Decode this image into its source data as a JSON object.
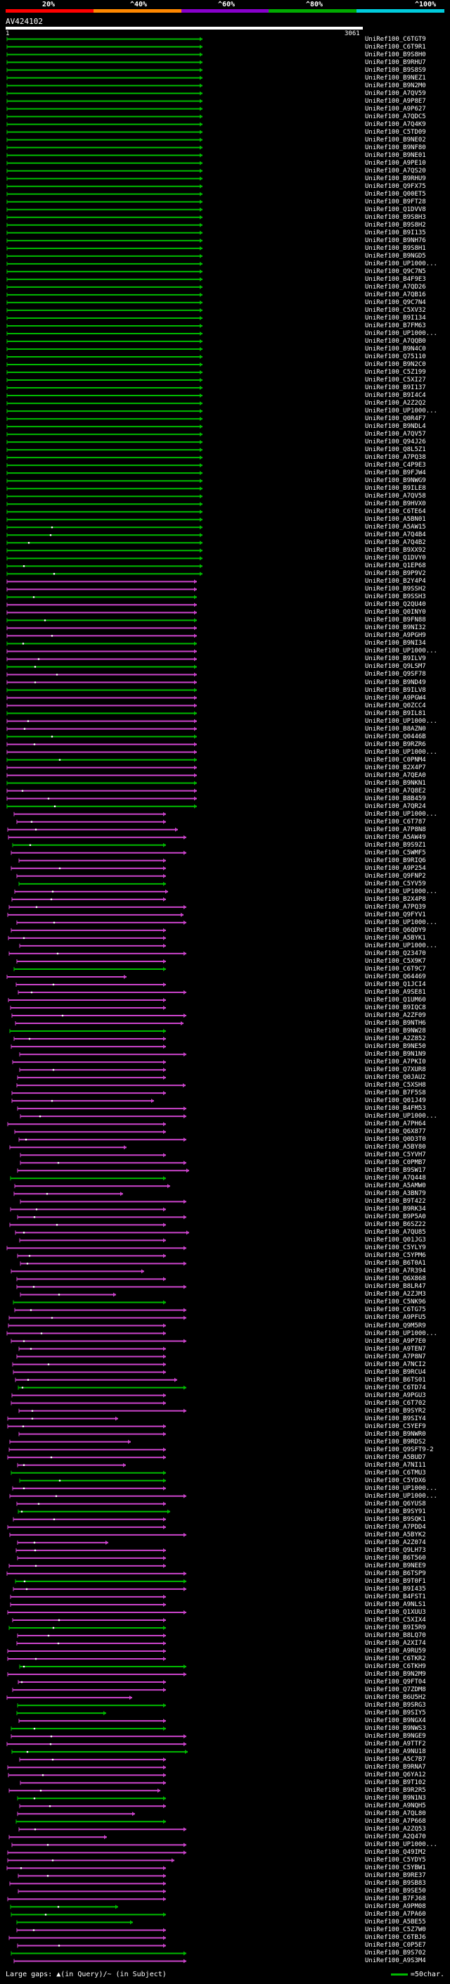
{
  "scale": {
    "labels": [
      "20%",
      "^40%",
      "^60%",
      "^80%",
      "^100%"
    ],
    "colors": [
      "#ff0000",
      "#ff8800",
      "#8800cc",
      "#00aa00",
      "#00ccdd"
    ]
  },
  "query": {
    "name": "AV424102",
    "start": "1",
    "end": "3061"
  },
  "colors": {
    "green": "#00bb00",
    "magenta": "#cc44cc",
    "background": "#000000"
  },
  "hits": [
    "UniRef100_C6TGT9",
    "UniRef100_C6T9R1",
    "UniRef100_B9S8H0",
    "UniRef100_B9RHU7",
    "UniRef100_B9S8S9",
    "UniRef100_B9NEZ1",
    "UniRef100_B9N2M0",
    "UniRef100_A7QV59",
    "UniRef100_A9P8E7",
    "UniRef100_A9P627",
    "UniRef100_A7QDC5",
    "UniRef100_A7Q4K9",
    "UniRef100_C5TD09",
    "UniRef100_B9NE02",
    "UniRef100_B9NF80",
    "UniRef100_B9NE01",
    "UniRef100_A9PE10",
    "UniRef100_A7QS20",
    "UniRef100_B9RHU9",
    "UniRef100_Q9FX75",
    "UniRef100_Q00ET5",
    "UniRef100_B9FT28",
    "UniRef100_Q1DVV8",
    "UniRef100_B9S8H3",
    "UniRef100_B9S8H2",
    "UniRef100_B9I135",
    "UniRef100_B9NH76",
    "UniRef100_B9S8H1",
    "UniRef100_B9NGD5",
    "UniRef100_UP1000...",
    "UniRef100_Q9C7N5",
    "UniRef100_B4F9E3",
    "UniRef100_A7QD26",
    "UniRef100_A7QB16",
    "UniRef100_Q9C7N4",
    "UniRef100_C5XV32",
    "UniRef100_B9I134",
    "UniRef100_B7FM63",
    "UniRef100_UP1000...",
    "UniRef100_A7QQB0",
    "UniRef100_B9N4C0",
    "UniRef100_Q75110",
    "UniRef100_B9N2C0",
    "UniRef100_C5Z199",
    "UniRef100_C5XI27",
    "UniRef100_B9I137",
    "UniRef100_B9I4C4",
    "UniRef100_A2Z2Q2",
    "UniRef100_UP1000...",
    "UniRef100_Q0R4F7",
    "UniRef100_B9NDL4",
    "UniRef100_A7QV57",
    "UniRef100_Q94J26",
    "UniRef100_Q8L5Z1",
    "UniRef100_A7PQ38",
    "UniRef100_C4P9E3",
    "UniRef100_B9FJW4",
    "UniRef100_B9NWG9",
    "UniRef100_B9ILE8",
    "UniRef100_A7QV58",
    "UniRef100_B9HVX0",
    "UniRef100_C6TE64",
    "UniRef100_A5BN01",
    "UniRef100_A5AW15",
    "UniRef100_A7Q4B4",
    "UniRef100_A7Q4B2",
    "UniRef100_B9XX92",
    "UniRef100_Q1DVY0",
    "UniRef100_Q1EP68",
    "UniRef100_B9P9V2",
    "UniRef100_B2Y4P4",
    "UniRef100_B9SSH2",
    "UniRef100_B9SSH3",
    "UniRef100_Q2QU40",
    "UniRef100_Q0INY0",
    "UniRef100_B9FN88",
    "UniRef100_B9NI32",
    "UniRef100_A9PGH9",
    "UniRef100_B9NI34",
    "UniRef100_UP1000...",
    "UniRef100_B9ILV9",
    "UniRef100_Q9LSM7",
    "UniRef100_Q9SF78",
    "UniRef100_B9ND49",
    "UniRef100_B9ILV8",
    "UniRef100_A9PGW4",
    "UniRef100_Q0ZCC4",
    "UniRef100_B9IL81",
    "UniRef100_UP1000...",
    "UniRef100_B8AZN0",
    "UniRef100_Q0446B",
    "UniRef100_B9RZR6",
    "UniRef100_UP1000...",
    "UniRef100_C0PNM4",
    "UniRef100_B2X4P7",
    "UniRef100_A7QEA0",
    "UniRef100_B9NKN1",
    "UniRef100_A7Q8E2",
    "UniRef100_B8B459",
    "UniRef100_A7QR24",
    "UniRef100_UP1000...",
    "UniRef100_C6T787",
    "UniRef100_A7P8N8",
    "UniRef100_A5AW49",
    "UniRef100_B9S9Z1",
    "UniRef100_C5WMF5",
    "UniRef100_B9RIQ6",
    "UniRef100_A9P254",
    "UniRef100_Q9FNP2",
    "UniRef100_C5YV59",
    "UniRef100_UP1000...",
    "UniRef100_B2X4P8",
    "UniRef100_A7PQ39",
    "UniRef100_Q9FYV1",
    "UniRef100_UP1000...",
    "UniRef100_Q6QDY9",
    "UniRef100_A5BYK1",
    "UniRef100_UP1000...",
    "UniRef100_Q23470",
    "UniRef100_C5X9K7",
    "UniRef100_C6T9C7",
    "UniRef100_Q64469",
    "UniRef100_Q1JCI4",
    "UniRef100_A9SE81",
    "UniRef100_Q1UM60",
    "UniRef100_B9IQC8",
    "UniRef100_A2ZF09",
    "UniRef100_B9NTH6",
    "UniRef100_B9NW28",
    "UniRef100_A2Z852",
    "UniRef100_B9NE50",
    "UniRef100_B9N1N9",
    "UniRef100_A7PKI0",
    "UniRef100_Q7XUR8",
    "UniRef100_Q0JAU2",
    "UniRef100_C5XSH8",
    "UniRef100_B7F5S8",
    "UniRef100_Q01J49",
    "UniRef100_B4FM53",
    "UniRef100_UP1000...",
    "UniRef100_A7PH64",
    "UniRef100_Q6X877",
    "UniRef100_Q0D3T0",
    "UniRef100_A5BY80",
    "UniRef100_C5YVH7",
    "UniRef100_C0PMB7",
    "UniRef100_B9SW17",
    "UniRef100_A7Q448",
    "UniRef100_A5AMW0",
    "UniRef100_A3BN79",
    "UniRef100_B9T422",
    "UniRef100_B9RK34",
    "UniRef100_B9P5A0",
    "UniRef100_B6SZ22",
    "UniRef100_A7QU85",
    "UniRef100_Q01JG3",
    "UniRef100_C5YLY9",
    "UniRef100_C5YPM6",
    "UniRef100_B6T0A1",
    "UniRef100_A7R394",
    "UniRef100_Q6X868",
    "UniRef100_B8LR47",
    "UniRef100_A2ZJM3",
    "UniRef100_C5NK96",
    "UniRef100_C6TG75",
    "UniRef100_A9PFU5",
    "UniRef100_Q9M5R9",
    "UniRef100_UP1000...",
    "UniRef100_A9P7E0",
    "UniRef100_A9TEN7",
    "UniRef100_A7P8N7",
    "UniRef100_A7NCI2",
    "UniRef100_B9RCU4",
    "UniRef100_B6TS01",
    "UniRef100_C6TD74",
    "UniRef100_A9PGU3",
    "UniRef100_C6T702",
    "UniRef100_B9SYR2",
    "UniRef100_B9SIY4",
    "UniRef100_C5YEF9",
    "UniRef100_B9NWR0",
    "UniRef100_B9RDS2",
    "UniRef100_Q9SFT9-2",
    "UniRef100_A5BUD7",
    "UniRef100_A7NI11",
    "UniRef100_C6TMU3",
    "UniRef100_C5YDX6",
    "UniRef100_UP1000...",
    "UniRef100_UP1000...",
    "UniRef100_Q6YUS8",
    "UniRef100_B9SY91",
    "UniRef100_B9SQK1",
    "UniRef100_A7PDD4",
    "UniRef100_A5BYK2",
    "UniRef100_A2Z074",
    "UniRef100_Q9LH73",
    "UniRef100_B6T560",
    "UniRef100_B9NEE9",
    "UniRef100_B6TSP9",
    "UniRef100_B9T0F1",
    "UniRef100_B9I435",
    "UniRef100_B4FST1",
    "UniRef100_A9NLS1",
    "UniRef100_Q1XUU3",
    "UniRef100_C5XIX4",
    "UniRef100_B9I5R9",
    "UniRef100_B8LQ70",
    "UniRef100_A2XI74",
    "UniRef100_A9RU59",
    "UniRef100_C6TKR2",
    "UniRef100_C6TKH9",
    "UniRef100_B9N2M9",
    "UniRef100_Q9FT04",
    "UniRef100_Q7ZDM8",
    "UniRef100_B6U5H2",
    "UniRef100_B9SRG3",
    "UniRef100_B9SIY5",
    "UniRef100_B9NGX4",
    "UniRef100_B9NWS3",
    "UniRef100_B9NGE9",
    "UniRef100_A9TTF2",
    "UniRef100_A9NU18",
    "UniRef100_A5C7B7",
    "UniRef100_B9RNA7",
    "UniRef100_Q6YA12",
    "UniRef100_B9T102",
    "UniRef100_B9R2R5",
    "UniRef100_B9N1N3",
    "UniRef100_A9NQH5",
    "UniRef100_A7QL80",
    "UniRef100_A7P668",
    "UniRef100_A2ZQ53",
    "UniRef100_A2Q470",
    "UniRef100_UP1000...",
    "UniRef100_Q49IM2",
    "UniRef100_C5YDY5",
    "UniRef100_C5YBW1",
    "UniRef100_B9RE37",
    "UniRef100_B9SB83",
    "UniRef100_B9SE50",
    "UniRef100_B7FJ68",
    "UniRef100_A9PM08",
    "UniRef100_A7PA60",
    "UniRef100_A5BE55",
    "UniRef100_C5Z7W0",
    "UniRef100_C6TBJ6",
    "UniRef100_C0P5E7",
    "UniRef100_B9S702",
    "UniRef100_A9S3M4"
  ],
  "legend": {
    "left_text": "Large gaps: ▲(in Query)/~ (in Subject)",
    "right_text": "=50char."
  }
}
